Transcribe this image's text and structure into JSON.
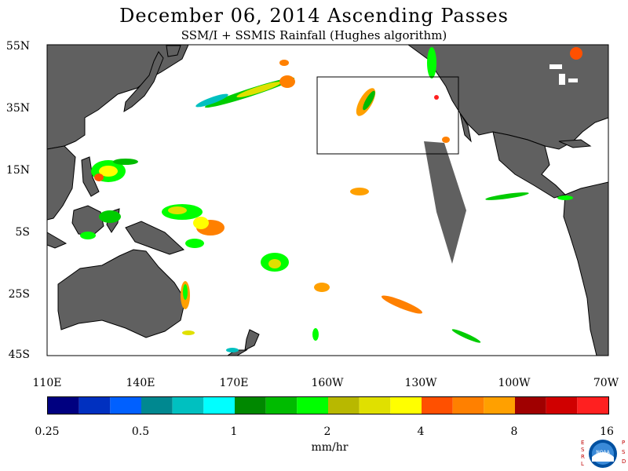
{
  "title": "December 06, 2014  Ascending Passes",
  "subtitle": "SSM/I + SSMIS Rainfall (Hughes algorithm)",
  "lat_labels": [
    "55N",
    "35N",
    "15N",
    "5S",
    "25S",
    "45S"
  ],
  "lon_labels": [
    "110E",
    "140E",
    "170E",
    "160W",
    "130W",
    "100W",
    "70W"
  ],
  "colorbar": {
    "colors": [
      "#000080",
      "#0030c0",
      "#0060ff",
      "#008890",
      "#00c0c0",
      "#00ffff",
      "#008800",
      "#00bb00",
      "#00ff00",
      "#b8b800",
      "#e0e000",
      "#ffff00",
      "#ff5000",
      "#ff8000",
      "#ffa000",
      "#a00000",
      "#d00000",
      "#ff2020"
    ],
    "tick_labels": [
      "0.25",
      "0.5",
      "1",
      "2",
      "4",
      "8",
      "16"
    ],
    "units": "mm/hr"
  },
  "colors": {
    "land": "#606060",
    "ocean": "#ffffff",
    "swath_gap": "#606060"
  },
  "logo": {
    "left_letters": [
      "E",
      "S",
      "R",
      "L"
    ],
    "right_letters": [
      "P",
      "S",
      "D"
    ],
    "text": "NOAA"
  }
}
